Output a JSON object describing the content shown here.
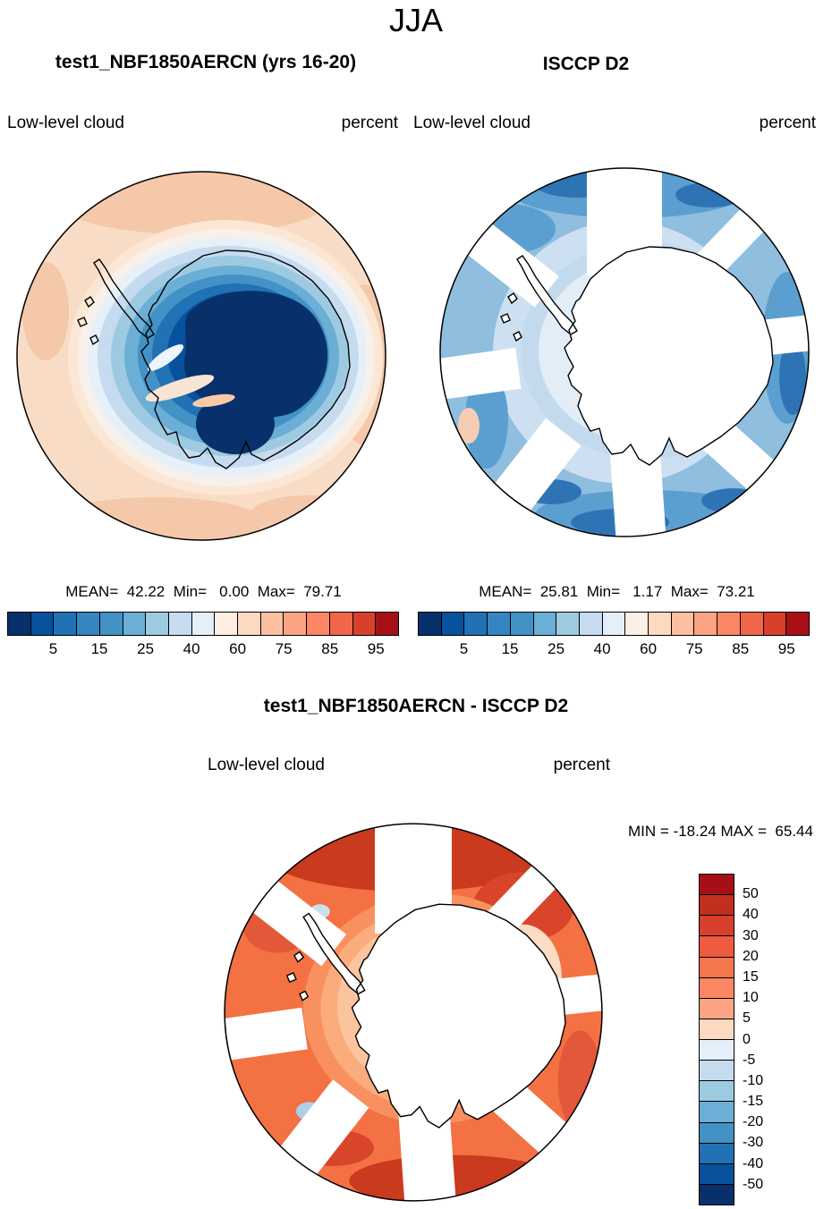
{
  "header": {
    "season": "JJA"
  },
  "panels": {
    "model": {
      "title": "test1_NBF1850AERCN (yrs 16-20)",
      "variable": "Low-level cloud",
      "units": "percent",
      "stats": "MEAN=  42.22  Min=   0.00  Max=  79.71"
    },
    "obs": {
      "title": "ISCCP D2",
      "variable": "Low-level cloud",
      "units": "percent",
      "stats": "MEAN=  25.81  Min=   1.17  Max=  73.21"
    },
    "diff": {
      "title": "test1_NBF1850AERCN - ISCCP D2",
      "variable": "Low-level cloud",
      "units": "percent",
      "stats": "MIN = -18.24 MAX =  65.44"
    }
  },
  "colorbar_top": {
    "ticks": [
      "5",
      "15",
      "25",
      "40",
      "60",
      "75",
      "85",
      "95"
    ],
    "tick_step": 2,
    "colors": [
      "#08306B",
      "#08519C",
      "#2171B5",
      "#3585C0",
      "#4292C6",
      "#6BAED6",
      "#9ECAE1",
      "#C6DBEF",
      "#E4EFF9",
      "#FDEFE4",
      "#FDD9C0",
      "#FCBFA0",
      "#FCA482",
      "#FB8765",
      "#F16548",
      "#D8402B",
      "#A81016"
    ]
  },
  "colorbar_diff": {
    "ticks": [
      "50",
      "40",
      "30",
      "20",
      "15",
      "10",
      "5",
      "0",
      "-5",
      "-10",
      "-15",
      "-20",
      "-30",
      "-40",
      "-50"
    ],
    "tick_step": 1,
    "colors": [
      "#A50F15",
      "#C1301F",
      "#D8402B",
      "#EF5940",
      "#F4764C",
      "#FB8765",
      "#FCA482",
      "#FDD9C0",
      "#E4EFF9",
      "#C6DBEF",
      "#9ECAE1",
      "#6BAED6",
      "#4292C6",
      "#2171B5",
      "#08519C",
      "#08306B"
    ]
  },
  "chart_data": [
    {
      "type": "heatmap",
      "panel": "model",
      "title": "test1_NBF1850AERCN (yrs 16-20)",
      "variable": "Low-level cloud",
      "units": "percent",
      "season": "JJA",
      "projection": "south-polar stereographic (Antarctica)",
      "stats": {
        "mean": 42.22,
        "min": 0.0,
        "max": 79.71
      },
      "contour_levels": [
        5,
        10,
        15,
        20,
        25,
        30,
        40,
        50,
        60,
        70,
        75,
        80,
        85,
        90,
        95
      ],
      "legend_ticks": [
        5,
        15,
        25,
        40,
        60,
        75,
        85,
        95
      ],
      "palette": "blue-white-red"
    },
    {
      "type": "heatmap",
      "panel": "obs",
      "title": "ISCCP D2",
      "variable": "Low-level cloud",
      "units": "percent",
      "season": "JJA",
      "projection": "south-polar stereographic (Antarctica)",
      "stats": {
        "mean": 25.81,
        "min": 1.17,
        "max": 73.21
      },
      "contour_levels": [
        5,
        10,
        15,
        20,
        25,
        30,
        40,
        50,
        60,
        70,
        75,
        80,
        85,
        90,
        95
      ],
      "legend_ticks": [
        5,
        15,
        25,
        40,
        60,
        75,
        85,
        95
      ],
      "palette": "blue-white-red"
    },
    {
      "type": "heatmap",
      "panel": "diff",
      "title": "test1_NBF1850AERCN - ISCCP D2",
      "variable": "Low-level cloud",
      "units": "percent",
      "season": "JJA",
      "projection": "south-polar stereographic (Antarctica)",
      "stats": {
        "min": -18.24,
        "max": 65.44
      },
      "contour_levels": [
        -50,
        -40,
        -30,
        -20,
        -15,
        -10,
        -5,
        0,
        5,
        10,
        15,
        20,
        30,
        40,
        50
      ],
      "legend_ticks": [
        50,
        40,
        30,
        20,
        15,
        10,
        5,
        0,
        -5,
        -10,
        -15,
        -20,
        -30,
        -40,
        -50
      ],
      "palette": "red-white-blue"
    }
  ]
}
